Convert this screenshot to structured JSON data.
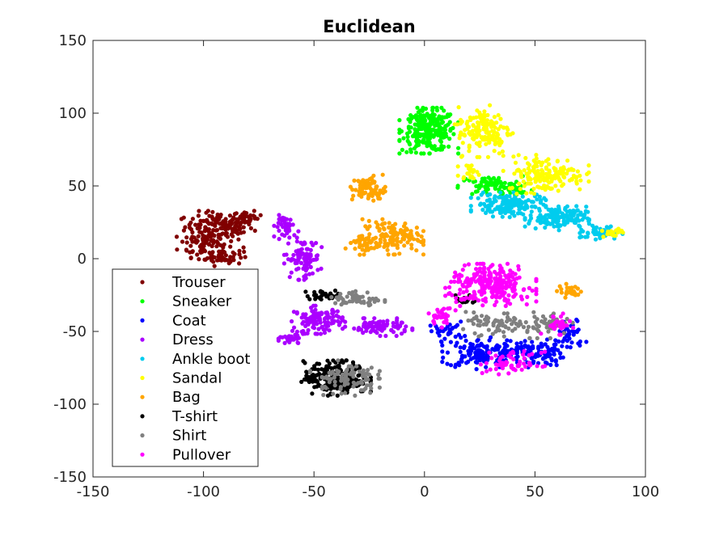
{
  "chart_data": {
    "type": "scatter",
    "title": "Euclidean",
    "xlabel": "",
    "ylabel": "",
    "xlim": [
      -150,
      100
    ],
    "ylim": [
      -150,
      150
    ],
    "xticks": [
      -150,
      -100,
      -50,
      0,
      50,
      100
    ],
    "yticks": [
      -150,
      -100,
      -50,
      0,
      50,
      100,
      150
    ],
    "grid": false,
    "legend_position": "bottom-left",
    "series": [
      {
        "name": "Trouser",
        "color": "#800000",
        "clusters": [
          {
            "cx": -93,
            "cy": 22,
            "rx": 14,
            "ry": 9,
            "n": 140
          },
          {
            "cx": -100,
            "cy": 10,
            "rx": 10,
            "ry": 8,
            "n": 60
          },
          {
            "cx": -92,
            "cy": 2,
            "rx": 9,
            "ry": 6,
            "n": 50
          },
          {
            "cx": -80,
            "cy": 28,
            "rx": 6,
            "ry": 4,
            "n": 30
          }
        ]
      },
      {
        "name": "Sneaker",
        "color": "#00ff00",
        "clusters": [
          {
            "cx": 2,
            "cy": 88,
            "rx": 11,
            "ry": 13,
            "n": 260
          },
          {
            "cx": 30,
            "cy": 50,
            "rx": 13,
            "ry": 6,
            "n": 80
          },
          {
            "cx": 42,
            "cy": 47,
            "rx": 7,
            "ry": 4,
            "n": 20
          }
        ]
      },
      {
        "name": "Coat",
        "color": "#0000ff",
        "clusters": [
          {
            "cx": 25,
            "cy": -65,
            "rx": 14,
            "ry": 9,
            "n": 130
          },
          {
            "cx": 50,
            "cy": -65,
            "rx": 12,
            "ry": 8,
            "n": 110
          },
          {
            "cx": 66,
            "cy": -52,
            "rx": 6,
            "ry": 10,
            "n": 40
          },
          {
            "cx": 10,
            "cy": -50,
            "rx": 7,
            "ry": 6,
            "n": 30
          }
        ]
      },
      {
        "name": "Dress",
        "color": "#aa00ff",
        "clusters": [
          {
            "cx": -55,
            "cy": 0,
            "rx": 7,
            "ry": 12,
            "n": 90
          },
          {
            "cx": -62,
            "cy": 22,
            "rx": 5,
            "ry": 7,
            "n": 40
          },
          {
            "cx": -48,
            "cy": -42,
            "rx": 10,
            "ry": 8,
            "n": 110
          },
          {
            "cx": -20,
            "cy": -47,
            "rx": 12,
            "ry": 5,
            "n": 80
          },
          {
            "cx": -60,
            "cy": -55,
            "rx": 5,
            "ry": 4,
            "n": 30
          }
        ]
      },
      {
        "name": "Ankle boot",
        "color": "#00ccee",
        "clusters": [
          {
            "cx": 38,
            "cy": 37,
            "rx": 14,
            "ry": 7,
            "n": 150
          },
          {
            "cx": 60,
            "cy": 28,
            "rx": 12,
            "ry": 7,
            "n": 140
          },
          {
            "cx": 80,
            "cy": 18,
            "rx": 8,
            "ry": 4,
            "n": 50
          }
        ]
      },
      {
        "name": "Sandal",
        "color": "#ffff00",
        "clusters": [
          {
            "cx": 27,
            "cy": 88,
            "rx": 11,
            "ry": 15,
            "n": 150
          },
          {
            "cx": 55,
            "cy": 58,
            "rx": 16,
            "ry": 11,
            "n": 160
          },
          {
            "cx": 85,
            "cy": 18,
            "rx": 4,
            "ry": 3,
            "n": 20
          },
          {
            "cx": 20,
            "cy": 60,
            "rx": 4,
            "ry": 4,
            "n": 20
          }
        ]
      },
      {
        "name": "Bag",
        "color": "#ffa500",
        "clusters": [
          {
            "cx": -25,
            "cy": 48,
            "rx": 7,
            "ry": 8,
            "n": 80
          },
          {
            "cx": -15,
            "cy": 15,
            "rx": 12,
            "ry": 10,
            "n": 130
          },
          {
            "cx": -28,
            "cy": 10,
            "rx": 7,
            "ry": 6,
            "n": 40
          },
          {
            "cx": 66,
            "cy": -22,
            "rx": 5,
            "ry": 4,
            "n": 25
          }
        ]
      },
      {
        "name": "T-shirt",
        "color": "#000000",
        "clusters": [
          {
            "cx": -40,
            "cy": -82,
            "rx": 13,
            "ry": 10,
            "n": 220
          },
          {
            "cx": -45,
            "cy": -25,
            "rx": 8,
            "ry": 3,
            "n": 30
          },
          {
            "cx": 18,
            "cy": -28,
            "rx": 5,
            "ry": 4,
            "n": 15
          }
        ]
      },
      {
        "name": "Shirt",
        "color": "#808080",
        "clusters": [
          {
            "cx": -36,
            "cy": -82,
            "rx": 13,
            "ry": 10,
            "n": 90
          },
          {
            "cx": -30,
            "cy": -28,
            "rx": 10,
            "ry": 5,
            "n": 50
          },
          {
            "cx": 32,
            "cy": -45,
            "rx": 12,
            "ry": 7,
            "n": 70
          },
          {
            "cx": 55,
            "cy": -45,
            "rx": 10,
            "ry": 8,
            "n": 50
          }
        ]
      },
      {
        "name": "Pullover",
        "color": "#ff00ff",
        "clusters": [
          {
            "cx": 30,
            "cy": -18,
            "rx": 17,
            "ry": 12,
            "n": 260
          },
          {
            "cx": 40,
            "cy": -72,
            "rx": 12,
            "ry": 7,
            "n": 60
          },
          {
            "cx": 8,
            "cy": -40,
            "rx": 5,
            "ry": 6,
            "n": 30
          },
          {
            "cx": 60,
            "cy": -45,
            "rx": 6,
            "ry": 6,
            "n": 30
          }
        ]
      }
    ]
  }
}
